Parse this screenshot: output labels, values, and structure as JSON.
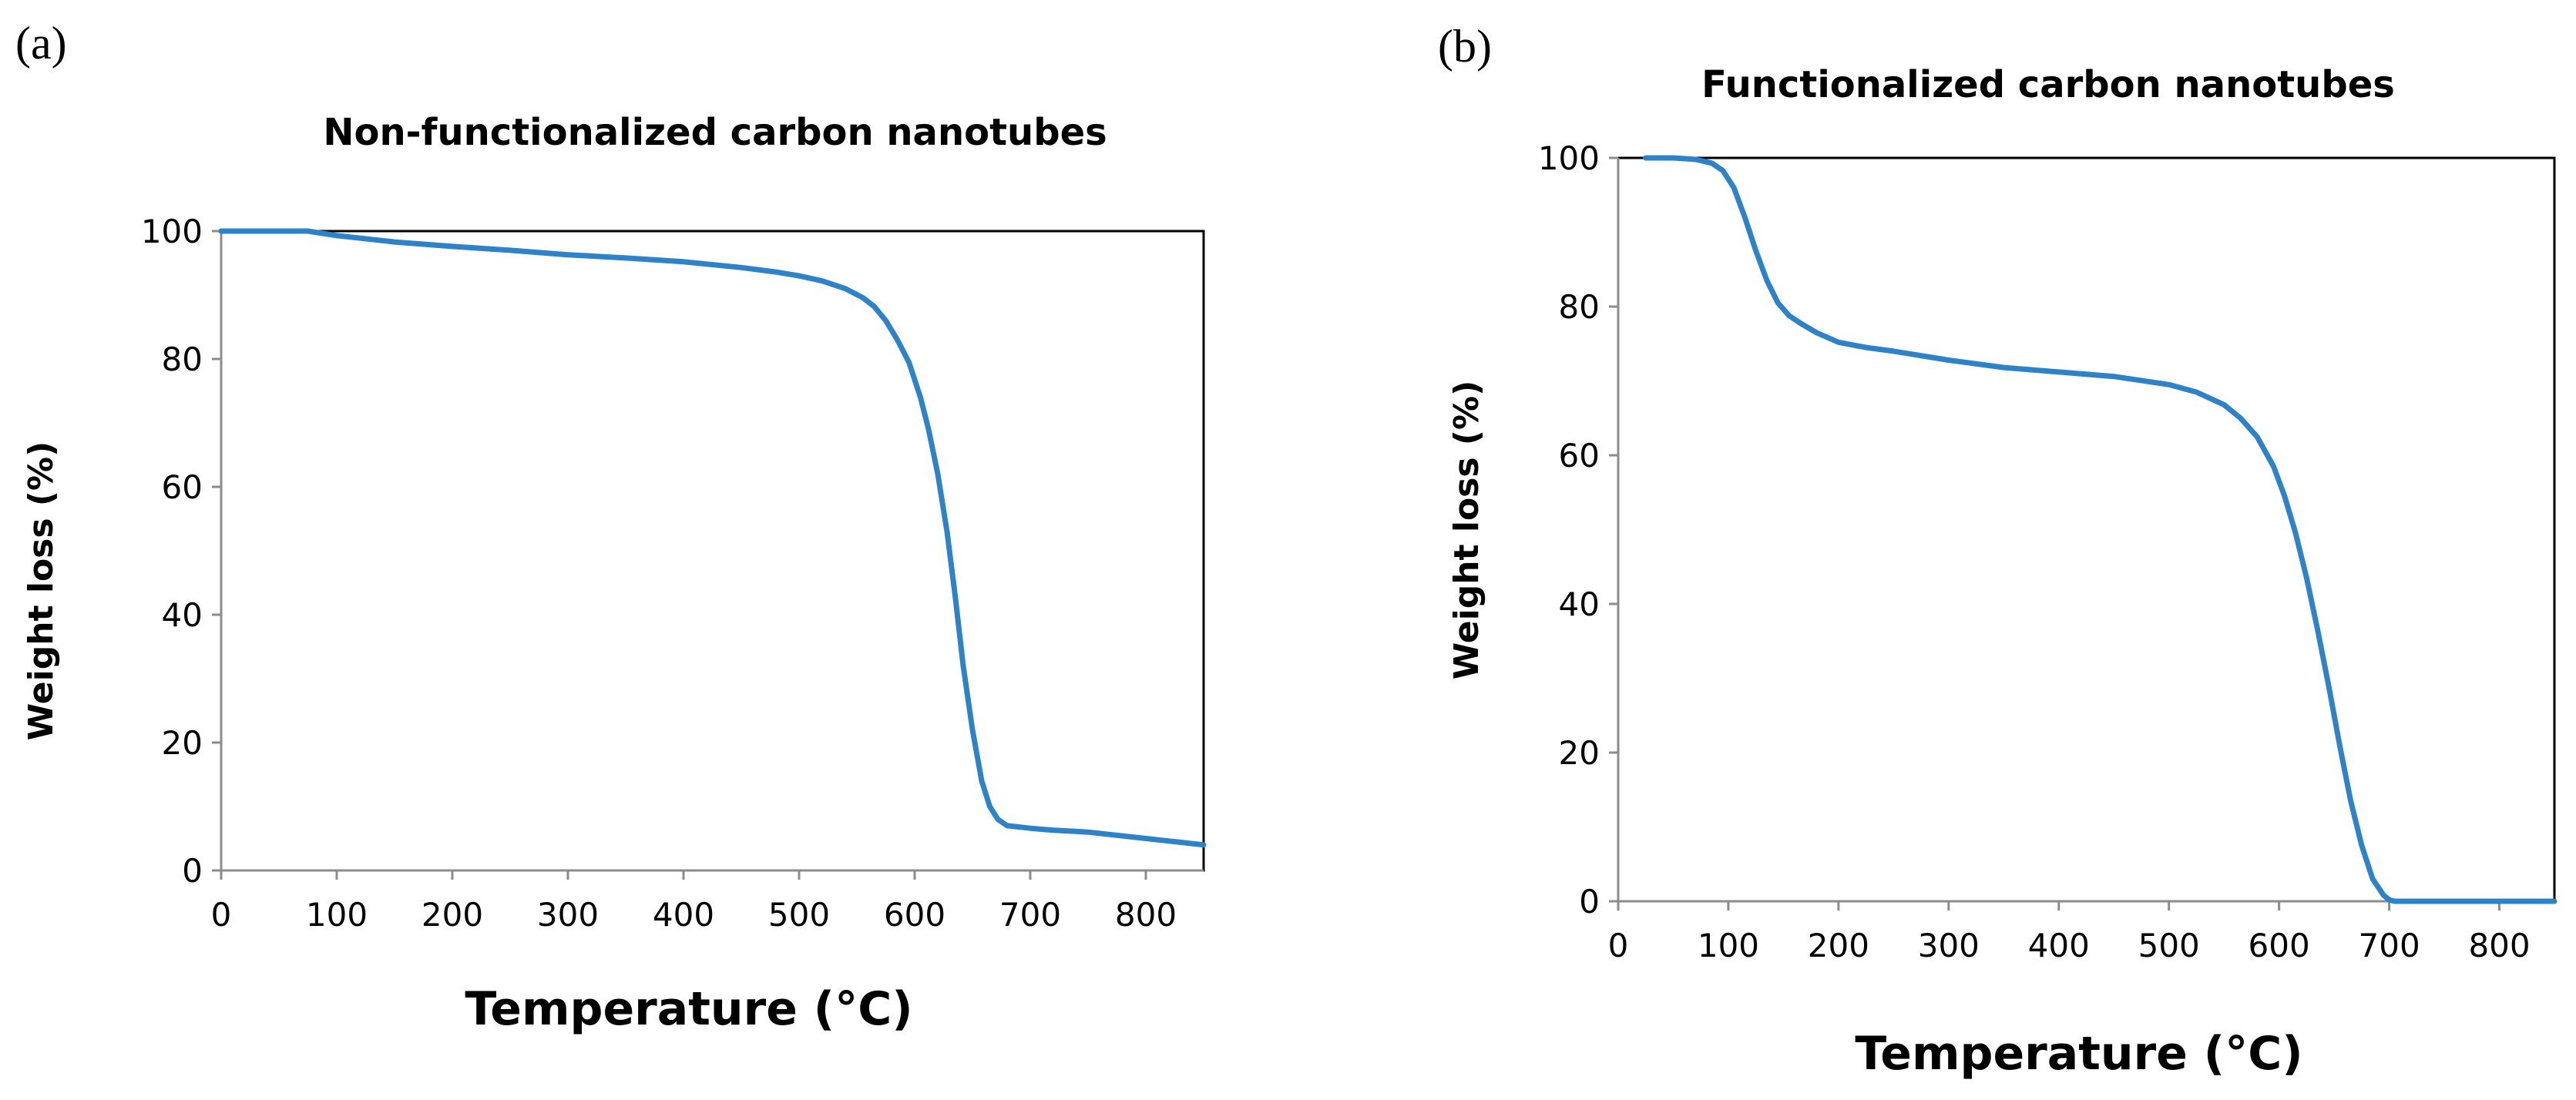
{
  "chart_data": [
    {
      "type": "line",
      "panel_label": "(a)",
      "title": "Non-functionalized carbon nanotubes",
      "xlabel": "Temperature (°C)",
      "ylabel": "Weight loss (%)",
      "xlim": [
        0,
        850
      ],
      "ylim": [
        0,
        100
      ],
      "xticks": [
        0,
        100,
        200,
        300,
        400,
        500,
        600,
        700,
        800
      ],
      "yticks": [
        0,
        20,
        40,
        60,
        80,
        100
      ],
      "grid": false,
      "series": [
        {
          "name": "Non-functionalized carbon nanotubes",
          "color": "#2e82c8",
          "x": [
            0,
            75,
            100,
            150,
            200,
            250,
            300,
            350,
            400,
            450,
            480,
            500,
            520,
            540,
            555,
            565,
            575,
            585,
            595,
            605,
            612,
            620,
            628,
            635,
            642,
            650,
            658,
            665,
            672,
            680,
            700,
            720,
            750,
            780,
            800,
            820,
            850
          ],
          "y": [
            100,
            100,
            99.3,
            98.3,
            97.6,
            97,
            96.3,
            95.8,
            95.2,
            94.3,
            93.6,
            93,
            92.2,
            91,
            89.6,
            88.2,
            86,
            83,
            79.5,
            74,
            69,
            62,
            53,
            43,
            32,
            22,
            14,
            10,
            8,
            7,
            6.6,
            6.3,
            6,
            5.4,
            5,
            4.6,
            4
          ]
        }
      ]
    },
    {
      "type": "line",
      "panel_label": "(b)",
      "title": "Functionalized carbon nanotubes",
      "xlabel": "Temperature (°C)",
      "ylabel": "Weight loss (%)",
      "xlim": [
        0,
        850
      ],
      "ylim": [
        0,
        100
      ],
      "xticks": [
        0,
        100,
        200,
        300,
        400,
        500,
        600,
        700,
        800
      ],
      "yticks": [
        0,
        20,
        40,
        60,
        80,
        100
      ],
      "grid": false,
      "series": [
        {
          "name": "Functionalized carbon nanotubes",
          "color": "#2e82c8",
          "x": [
            25,
            50,
            70,
            85,
            95,
            105,
            115,
            125,
            135,
            145,
            155,
            165,
            180,
            200,
            225,
            250,
            300,
            350,
            400,
            450,
            500,
            525,
            550,
            565,
            580,
            595,
            605,
            615,
            625,
            635,
            645,
            655,
            665,
            675,
            685,
            695,
            700,
            705,
            720,
            750,
            800,
            850
          ],
          "y": [
            100,
            100,
            99.8,
            99.3,
            98.3,
            96,
            92,
            87.5,
            83.5,
            80.5,
            78.8,
            77.8,
            76.5,
            75.2,
            74.5,
            74,
            72.8,
            71.8,
            71.2,
            70.6,
            69.5,
            68.5,
            66.8,
            65,
            62.5,
            58.5,
            54.5,
            49.5,
            43.5,
            36.5,
            29,
            21,
            13.5,
            7.5,
            3,
            0.8,
            0.2,
            0,
            0,
            0,
            0,
            0
          ]
        }
      ]
    }
  ]
}
